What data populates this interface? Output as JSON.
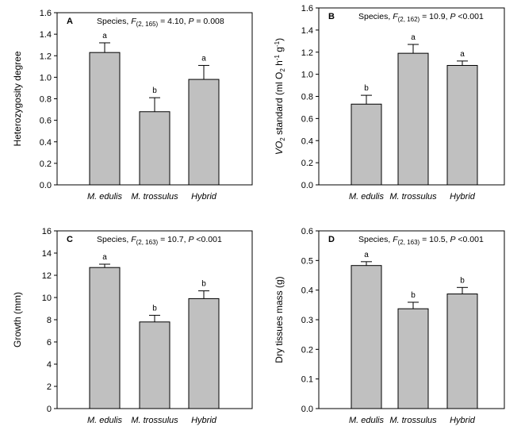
{
  "chart_data": [
    {
      "type": "bar",
      "panel": "A",
      "stat_text": "Species, F(2, 165) = 4.10, P = 0.008",
      "stat": {
        "prefix": "Species, ",
        "F": "F",
        "df": "(2, 165)",
        "mid": " = 4.10, ",
        "P": "P",
        "tail": " = 0.008"
      },
      "ylabel": "Heterozygosity degree",
      "ylabel_parts": [
        {
          "t": "Heterozygosity degree"
        }
      ],
      "categories": [
        "M. edulis",
        "M. trossulus",
        "Hybrid"
      ],
      "values": [
        1.23,
        0.68,
        0.98
      ],
      "errors": [
        0.09,
        0.13,
        0.13
      ],
      "letters": [
        "a",
        "b",
        "a"
      ],
      "ylim": [
        0,
        1.6
      ],
      "yticks": [
        "0.0",
        "0.2",
        "0.4",
        "0.6",
        "0.8",
        "1.0",
        "1.2",
        "1.4",
        "1.6"
      ]
    },
    {
      "type": "bar",
      "panel": "B",
      "stat_text": "Species, F(2, 162) = 10.9, P <0.001",
      "stat": {
        "prefix": "Species, ",
        "F": "F",
        "df": "(2, 162)",
        "mid": " = 10.9, ",
        "P": "P",
        "tail": " <0.001"
      },
      "ylabel": "VO2 standard (ml O2 h-1 g-1)",
      "ylabel_parts": [
        {
          "t": "VO",
          "i": true
        },
        {
          "t": "2",
          "sub": true
        },
        {
          "t": " standard (ml O"
        },
        {
          "t": "2",
          "sub": true
        },
        {
          "t": " h"
        },
        {
          "t": "-1",
          "sup": true
        },
        {
          "t": " g"
        },
        {
          "t": "-1",
          "sup": true
        },
        {
          "t": ")"
        }
      ],
      "categories": [
        "M. edulis",
        "M. trossulus",
        "Hybrid"
      ],
      "values": [
        0.73,
        1.19,
        1.08
      ],
      "errors": [
        0.08,
        0.08,
        0.04
      ],
      "letters": [
        "b",
        "a",
        "a"
      ],
      "ylim": [
        0,
        1.6
      ],
      "yticks": [
        "0.0",
        "0.2",
        "0.4",
        "0.6",
        "0.8",
        "1.0",
        "1.2",
        "1.4",
        "1.6"
      ]
    },
    {
      "type": "bar",
      "panel": "C",
      "stat_text": "Species, F(2, 163) = 10.7, P <0.001",
      "stat": {
        "prefix": "Species, ",
        "F": "F",
        "df": "(2, 163)",
        "mid": " = 10.7, ",
        "P": "P",
        "tail": " <0.001"
      },
      "ylabel": "Growth (mm)",
      "ylabel_parts": [
        {
          "t": "Growth (mm)"
        }
      ],
      "categories": [
        "M. edulis",
        "M. trossulus",
        "Hybrid"
      ],
      "values": [
        12.7,
        7.8,
        9.9
      ],
      "errors": [
        0.3,
        0.6,
        0.7
      ],
      "letters": [
        "a",
        "b",
        "b"
      ],
      "ylim": [
        0,
        16
      ],
      "yticks": [
        "0",
        "2",
        "4",
        "6",
        "8",
        "10",
        "12",
        "14",
        "16"
      ]
    },
    {
      "type": "bar",
      "panel": "D",
      "stat_text": "Species, F(2, 163) = 10.5, P <0.001",
      "stat": {
        "prefix": "Species, ",
        "F": "F",
        "df": "(2, 163)",
        "mid": " = 10.5, ",
        "P": "P",
        "tail": " <0.001"
      },
      "ylabel": "Dry tissues mass (g)",
      "ylabel_parts": [
        {
          "t": "Dry tissues mass (g)"
        }
      ],
      "categories": [
        "M. edulis",
        "M. trossulus",
        "Hybrid"
      ],
      "values": [
        0.483,
        0.337,
        0.387
      ],
      "errors": [
        0.013,
        0.022,
        0.022
      ],
      "letters": [
        "a",
        "b",
        "b"
      ],
      "ylim": [
        0,
        0.6
      ],
      "yticks": [
        "0.0",
        "0.1",
        "0.2",
        "0.3",
        "0.4",
        "0.5",
        "0.6"
      ]
    }
  ],
  "colors": {
    "bar_fill": "#c0c0c0",
    "bar_stroke": "#000000",
    "axis": "#000000"
  }
}
